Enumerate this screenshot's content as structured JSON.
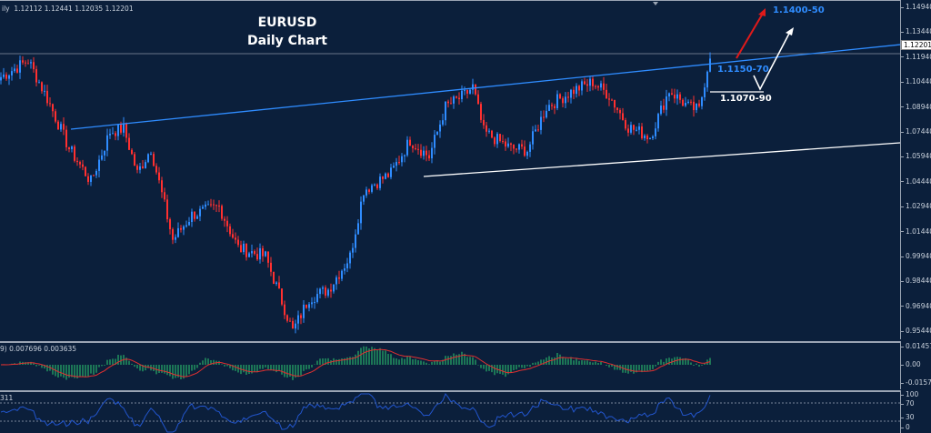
{
  "header": {
    "period_suffix": "ily",
    "ohlc": "1.12112 1.12441 1.12035 1.12201"
  },
  "title": {
    "line1": "EURUSD",
    "line2": "Daily Chart"
  },
  "annotations": {
    "target_high": "1.1400-50",
    "resistance": "1.1150-70",
    "support": "1.1070-90"
  },
  "price_axis": {
    "ticks": [
      "1.14940",
      "1.13440",
      "1.11940",
      "1.10440",
      "1.08940",
      "1.07440",
      "1.05940",
      "1.04440",
      "1.02940",
      "1.01440",
      "0.99940",
      "0.98440",
      "0.96940",
      "0.95440"
    ],
    "last_price": "1.12201"
  },
  "macd": {
    "info": "9) 0.007696 0.003635",
    "axis": [
      "0.014573",
      "0.00",
      "-0.015723"
    ]
  },
  "rsi": {
    "info": "311",
    "axis": [
      "100",
      "70",
      "30",
      "0"
    ]
  },
  "price_path": [
    [
      0,
      1.108
    ],
    [
      10,
      1.118
    ],
    [
      17,
      1.095
    ],
    [
      25,
      1.065
    ],
    [
      33,
      1.045
    ],
    [
      40,
      1.075
    ],
    [
      45,
      1.077
    ],
    [
      50,
      1.05
    ],
    [
      55,
      1.065
    ],
    [
      63,
      1.01
    ],
    [
      70,
      1.025
    ],
    [
      80,
      1.03
    ],
    [
      87,
      1.005
    ],
    [
      97,
      1.0
    ],
    [
      107,
      0.955
    ],
    [
      113,
      0.975
    ],
    [
      120,
      0.98
    ],
    [
      128,
      1.0
    ],
    [
      133,
      1.04
    ],
    [
      143,
      1.05
    ],
    [
      150,
      1.07
    ],
    [
      157,
      1.06
    ],
    [
      163,
      1.09
    ],
    [
      170,
      1.097
    ],
    [
      173,
      1.102
    ],
    [
      177,
      1.075
    ],
    [
      187,
      1.065
    ],
    [
      193,
      1.064
    ],
    [
      200,
      1.09
    ],
    [
      210,
      1.1
    ],
    [
      217,
      1.105
    ],
    [
      223,
      1.097
    ],
    [
      230,
      1.078
    ],
    [
      238,
      1.072
    ],
    [
      245,
      1.1
    ],
    [
      252,
      1.09
    ],
    [
      256,
      1.088
    ],
    [
      260,
      1.122
    ]
  ],
  "colors": {
    "bull": "#2f8cff",
    "bear": "#ff3030",
    "macd_hist": "#2ecc71",
    "signal": "#e03030",
    "rsi": "#2255cc",
    "background": "#0b1f3b"
  }
}
